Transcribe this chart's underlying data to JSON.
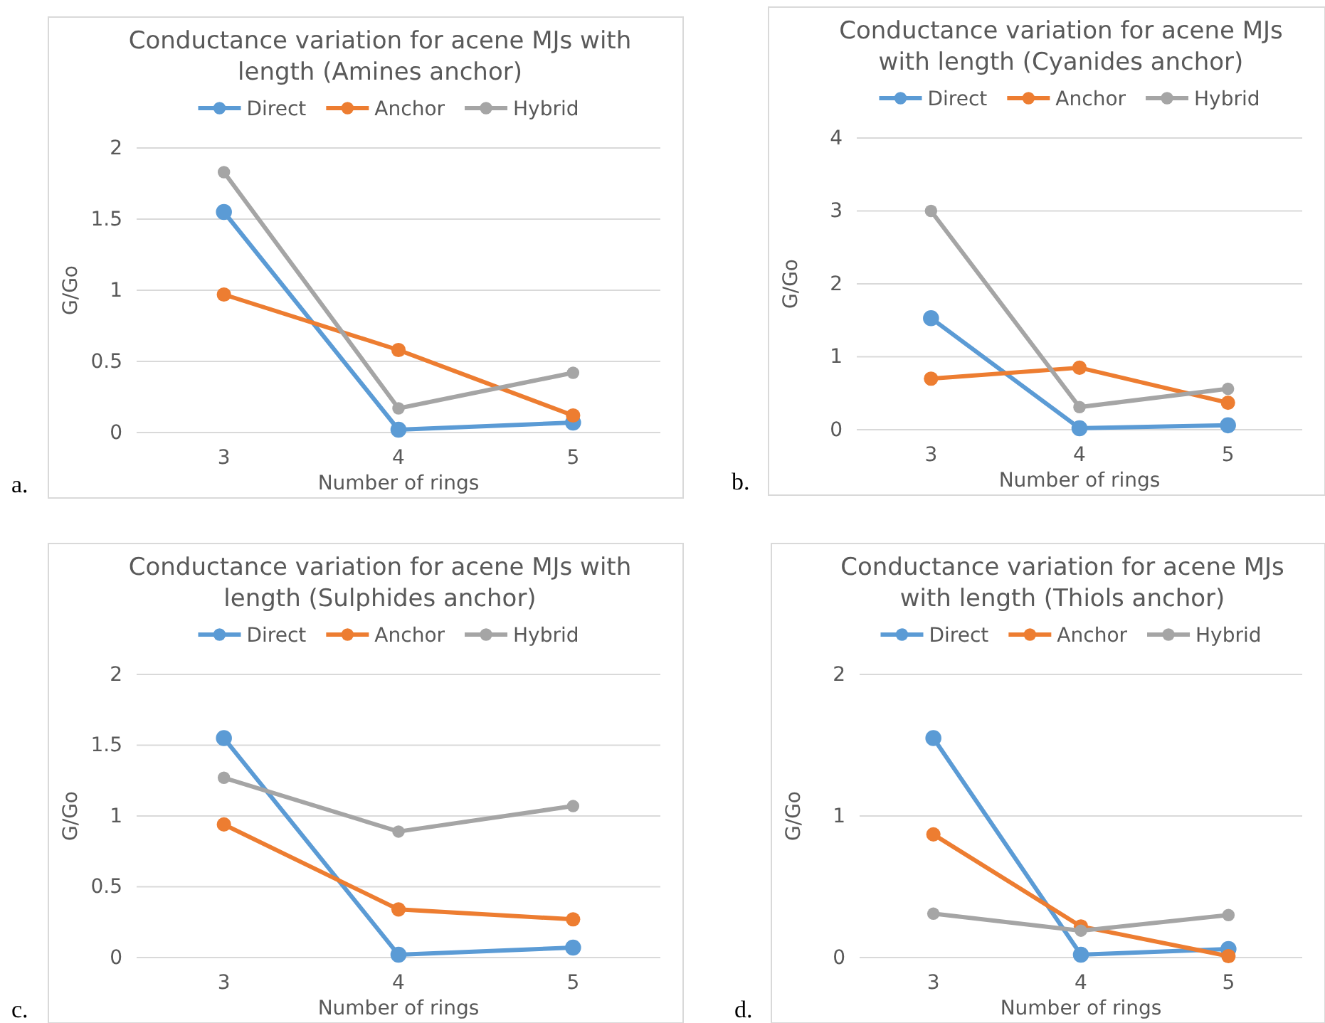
{
  "chart_data": [
    {
      "type": "line",
      "title": "Conductance variation for acene MJs with length (Amines anchor)",
      "xlabel": "Number of rings",
      "ylabel": "G/Go",
      "categories": [
        "3",
        "4",
        "5"
      ],
      "ylim": [
        0,
        2
      ],
      "yticks": [
        0,
        0.5,
        1,
        1.5,
        2
      ],
      "grid": "y",
      "legend": "top",
      "marker": "circle",
      "annotations": [
        "a."
      ],
      "series": [
        {
          "name": "Direct",
          "color": "#5b9bd5",
          "values": [
            1.55,
            0.02,
            0.07
          ]
        },
        {
          "name": "Anchor",
          "color": "#ed7d31",
          "values": [
            0.97,
            0.58,
            0.12
          ]
        },
        {
          "name": "Hybrid",
          "color": "#a5a5a5",
          "values": [
            1.83,
            0.17,
            0.42
          ]
        }
      ]
    },
    {
      "type": "line",
      "title": "Conductance variation for acene MJs with length (Cyanides anchor)",
      "xlabel": "Number of rings",
      "ylabel": "G/Go",
      "categories": [
        "3",
        "4",
        "5"
      ],
      "ylim": [
        0,
        4
      ],
      "yticks": [
        0,
        1,
        2,
        3,
        4
      ],
      "grid": "y",
      "legend": "top",
      "marker": "circle",
      "annotations": [
        "b."
      ],
      "series": [
        {
          "name": "Direct",
          "color": "#5b9bd5",
          "values": [
            1.53,
            0.02,
            0.06
          ]
        },
        {
          "name": "Anchor",
          "color": "#ed7d31",
          "values": [
            0.7,
            0.85,
            0.37
          ]
        },
        {
          "name": "Hybrid",
          "color": "#a5a5a5",
          "values": [
            3.0,
            0.31,
            0.56
          ]
        }
      ]
    },
    {
      "type": "line",
      "title": "Conductance variation for acene MJs with length (Sulphides anchor)",
      "xlabel": "Number of rings",
      "ylabel": "G/Go",
      "categories": [
        "3",
        "4",
        "5"
      ],
      "ylim": [
        0,
        2
      ],
      "yticks": [
        0,
        0.5,
        1,
        1.5,
        2
      ],
      "grid": "y",
      "legend": "top",
      "marker": "circle",
      "annotations": [
        "c."
      ],
      "series": [
        {
          "name": "Direct",
          "color": "#5b9bd5",
          "values": [
            1.55,
            0.02,
            0.07
          ]
        },
        {
          "name": "Anchor",
          "color": "#ed7d31",
          "values": [
            0.94,
            0.34,
            0.27
          ]
        },
        {
          "name": "Hybrid",
          "color": "#a5a5a5",
          "values": [
            1.27,
            0.89,
            1.07
          ]
        }
      ]
    },
    {
      "type": "line",
      "title": "Conductance variation for acene MJs with length (Thiols anchor)",
      "xlabel": "Number of rings",
      "ylabel": "G/Go",
      "categories": [
        "3",
        "4",
        "5"
      ],
      "ylim": [
        0,
        2
      ],
      "yticks": [
        0,
        1,
        2
      ],
      "grid": "y",
      "legend": "top",
      "marker": "circle",
      "annotations": [
        "d."
      ],
      "series": [
        {
          "name": "Direct",
          "color": "#5b9bd5",
          "values": [
            1.55,
            0.02,
            0.06
          ]
        },
        {
          "name": "Anchor",
          "color": "#ed7d31",
          "values": [
            0.87,
            0.22,
            0.01
          ]
        },
        {
          "name": "Hybrid",
          "color": "#a5a5a5",
          "values": [
            0.31,
            0.19,
            0.3
          ]
        }
      ]
    }
  ]
}
